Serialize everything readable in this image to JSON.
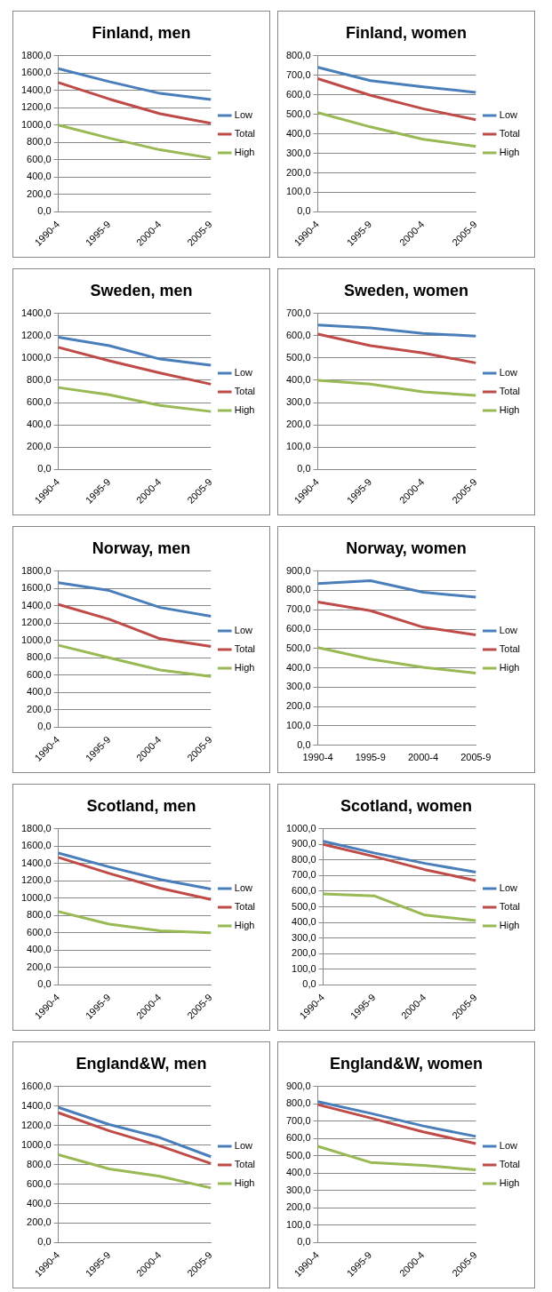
{
  "chart_data": [
    {
      "type": "line",
      "title": "Finland, men",
      "categories": [
        "1990-4",
        "1995-9",
        "2000-4",
        "2005-9"
      ],
      "ylim": [
        0,
        1800
      ],
      "yticks": [
        {
          "value": 0,
          "label": "0,0"
        },
        {
          "value": 200,
          "label": "200,0"
        },
        {
          "value": 400,
          "label": "400,0"
        },
        {
          "value": 600,
          "label": "600,0"
        },
        {
          "value": 800,
          "label": "800,0"
        },
        {
          "value": 1000,
          "label": "1000,0"
        },
        {
          "value": 1200,
          "label": "1200,0"
        },
        {
          "value": 1400,
          "label": "1400,0"
        },
        {
          "value": 1600,
          "label": "1600,0"
        },
        {
          "value": 1800,
          "label": "1800,0"
        }
      ],
      "grid": "y",
      "legend": "right",
      "marker": "none",
      "series": [
        {
          "name": "Low",
          "color": "#4a7ebb",
          "values": [
            1650,
            1500,
            1365,
            1295
          ]
        },
        {
          "name": "Total",
          "color": "#be4b48",
          "values": [
            1490,
            1300,
            1130,
            1020
          ]
        },
        {
          "name": "High",
          "color": "#98b954",
          "values": [
            1000,
            850,
            715,
            620
          ]
        }
      ]
    },
    {
      "type": "line",
      "title": "Finland, women",
      "categories": [
        "1990-4",
        "1995-9",
        "2000-4",
        "2005-9"
      ],
      "ylim": [
        0,
        800
      ],
      "yticks": [
        {
          "value": 0,
          "label": "0,0"
        },
        {
          "value": 100,
          "label": "100,0"
        },
        {
          "value": 200,
          "label": "200,0"
        },
        {
          "value": 300,
          "label": "300,0"
        },
        {
          "value": 400,
          "label": "400,0"
        },
        {
          "value": 500,
          "label": "500,0"
        },
        {
          "value": 600,
          "label": "600,0"
        },
        {
          "value": 700,
          "label": "700,0"
        },
        {
          "value": 800,
          "label": "800,0"
        }
      ],
      "grid": "y",
      "legend": "right",
      "marker": "none",
      "series": [
        {
          "name": "Low",
          "color": "#4a7ebb",
          "values": [
            740,
            672,
            640,
            612
          ]
        },
        {
          "name": "Total",
          "color": "#be4b48",
          "values": [
            682,
            597,
            528,
            472
          ]
        },
        {
          "name": "High",
          "color": "#98b954",
          "values": [
            508,
            435,
            372,
            335
          ]
        }
      ]
    },
    {
      "type": "line",
      "title": "Sweden, men",
      "categories": [
        "1990-4",
        "1995-9",
        "2000-4",
        "2005-9"
      ],
      "ylim": [
        0,
        1400
      ],
      "yticks": [
        {
          "value": 0,
          "label": "0,0"
        },
        {
          "value": 200,
          "label": "200,0"
        },
        {
          "value": 400,
          "label": "400,0"
        },
        {
          "value": 600,
          "label": "600,0"
        },
        {
          "value": 800,
          "label": "800,0"
        },
        {
          "value": 1000,
          "label": "1000,0"
        },
        {
          "value": 1200,
          "label": "1200,0"
        },
        {
          "value": 1400,
          "label": "1400,0"
        }
      ],
      "grid": "y",
      "legend": "right",
      "marker": "none",
      "series": [
        {
          "name": "Low",
          "color": "#4a7ebb",
          "values": [
            1185,
            1110,
            990,
            935
          ]
        },
        {
          "name": "Total",
          "color": "#be4b48",
          "values": [
            1095,
            975,
            865,
            765
          ]
        },
        {
          "name": "High",
          "color": "#98b954",
          "values": [
            735,
            670,
            575,
            520
          ]
        }
      ]
    },
    {
      "type": "line",
      "title": "Sweden, women",
      "categories": [
        "1990-4",
        "1995-9",
        "2000-4",
        "2005-9"
      ],
      "ylim": [
        0,
        700
      ],
      "yticks": [
        {
          "value": 0,
          "label": "0,0"
        },
        {
          "value": 100,
          "label": "100,0"
        },
        {
          "value": 200,
          "label": "200,0"
        },
        {
          "value": 300,
          "label": "300,0"
        },
        {
          "value": 400,
          "label": "400,0"
        },
        {
          "value": 500,
          "label": "500,0"
        },
        {
          "value": 600,
          "label": "600,0"
        },
        {
          "value": 700,
          "label": "700,0"
        }
      ],
      "grid": "y",
      "legend": "right",
      "marker": "none",
      "series": [
        {
          "name": "Low",
          "color": "#4a7ebb",
          "values": [
            648,
            635,
            610,
            598
          ]
        },
        {
          "name": "Total",
          "color": "#be4b48",
          "values": [
            607,
            555,
            522,
            478
          ]
        },
        {
          "name": "High",
          "color": "#98b954",
          "values": [
            400,
            383,
            348,
            332
          ]
        }
      ]
    },
    {
      "type": "line",
      "title": "Norway, men",
      "categories": [
        "1990-4",
        "1995-9",
        "2000-4",
        "2005-9"
      ],
      "ylim": [
        0,
        1800
      ],
      "yticks": [
        {
          "value": 0,
          "label": "0,0"
        },
        {
          "value": 200,
          "label": "200,0"
        },
        {
          "value": 400,
          "label": "400,0"
        },
        {
          "value": 600,
          "label": "600,0"
        },
        {
          "value": 800,
          "label": "800,0"
        },
        {
          "value": 1000,
          "label": "1000,0"
        },
        {
          "value": 1200,
          "label": "1200,0"
        },
        {
          "value": 1400,
          "label": "1400,0"
        },
        {
          "value": 1600,
          "label": "1600,0"
        },
        {
          "value": 1800,
          "label": "1800,0"
        }
      ],
      "grid": "y",
      "legend": "right",
      "marker": "none",
      "series": [
        {
          "name": "Low",
          "color": "#4a7ebb",
          "values": [
            1665,
            1575,
            1380,
            1280
          ]
        },
        {
          "name": "Total",
          "color": "#be4b48",
          "values": [
            1415,
            1245,
            1020,
            930
          ]
        },
        {
          "name": "High",
          "color": "#98b954",
          "values": [
            945,
            800,
            660,
            585
          ]
        }
      ]
    },
    {
      "type": "line",
      "title": "Norway, women",
      "categories": [
        "1990-4",
        "1995-9",
        "2000-4",
        "2005-9"
      ],
      "ylim": [
        0,
        900
      ],
      "yticks": [
        {
          "value": 0,
          "label": "0,0"
        },
        {
          "value": 100,
          "label": "100,0"
        },
        {
          "value": 200,
          "label": "200,0"
        },
        {
          "value": 300,
          "label": "300,0"
        },
        {
          "value": 400,
          "label": "400,0"
        },
        {
          "value": 500,
          "label": "500,0"
        },
        {
          "value": 600,
          "label": "600,0"
        },
        {
          "value": 700,
          "label": "700,0"
        },
        {
          "value": 800,
          "label": "800,0"
        },
        {
          "value": 900,
          "label": "900,0"
        }
      ],
      "grid": "y",
      "legend": "right",
      "marker": "none",
      "series": [
        {
          "name": "Low",
          "color": "#4a7ebb",
          "values": [
            835,
            850,
            790,
            765
          ]
        },
        {
          "name": "Total",
          "color": "#be4b48",
          "values": [
            740,
            695,
            610,
            570
          ]
        },
        {
          "name": "High",
          "color": "#98b954",
          "values": [
            505,
            445,
            403,
            373
          ]
        }
      ]
    },
    {
      "type": "line",
      "title": "Scotland, men",
      "categories": [
        "1990-4",
        "1995-9",
        "2000-4",
        "2005-9"
      ],
      "ylim": [
        0,
        1800
      ],
      "yticks": [
        {
          "value": 0,
          "label": "0,0"
        },
        {
          "value": 200,
          "label": "200,0"
        },
        {
          "value": 400,
          "label": "400,0"
        },
        {
          "value": 600,
          "label": "600,0"
        },
        {
          "value": 800,
          "label": "800,0"
        },
        {
          "value": 1000,
          "label": "1000,0"
        },
        {
          "value": 1200,
          "label": "1200,0"
        },
        {
          "value": 1400,
          "label": "1400,0"
        },
        {
          "value": 1600,
          "label": "1600,0"
        },
        {
          "value": 1800,
          "label": "1800,0"
        }
      ],
      "grid": "y",
      "legend": "right",
      "marker": "none",
      "series": [
        {
          "name": "Low",
          "color": "#4a7ebb",
          "values": [
            1520,
            1360,
            1215,
            1105
          ]
        },
        {
          "name": "Total",
          "color": "#be4b48",
          "values": [
            1470,
            1285,
            1115,
            985
          ]
        },
        {
          "name": "High",
          "color": "#98b954",
          "values": [
            845,
            700,
            625,
            600
          ]
        }
      ]
    },
    {
      "type": "line",
      "title": "Scotland, women",
      "categories": [
        "1990-4",
        "1995-9",
        "2000-4",
        "2005-9"
      ],
      "ylim": [
        0,
        1000
      ],
      "yticks": [
        {
          "value": 0,
          "label": "0,0"
        },
        {
          "value": 100,
          "label": "100,0"
        },
        {
          "value": 200,
          "label": "200,0"
        },
        {
          "value": 300,
          "label": "300,0"
        },
        {
          "value": 400,
          "label": "400,0"
        },
        {
          "value": 500,
          "label": "500,0"
        },
        {
          "value": 600,
          "label": "600,0"
        },
        {
          "value": 700,
          "label": "700,0"
        },
        {
          "value": 800,
          "label": "800,0"
        },
        {
          "value": 900,
          "label": "900,0"
        },
        {
          "value": 1000,
          "label": "1000,0"
        }
      ],
      "grid": "y",
      "legend": "right",
      "marker": "none",
      "series": [
        {
          "name": "Low",
          "color": "#4a7ebb",
          "values": [
            920,
            845,
            778,
            722
          ]
        },
        {
          "name": "Total",
          "color": "#be4b48",
          "values": [
            900,
            822,
            738,
            668
          ]
        },
        {
          "name": "High",
          "color": "#98b954",
          "values": [
            582,
            570,
            447,
            412
          ]
        }
      ]
    },
    {
      "type": "line",
      "title": "England&W, men",
      "categories": [
        "1990-4",
        "1995-9",
        "2000-4",
        "2005-9"
      ],
      "ylim": [
        0,
        1600
      ],
      "yticks": [
        {
          "value": 0,
          "label": "0,0"
        },
        {
          "value": 200,
          "label": "200,0"
        },
        {
          "value": 400,
          "label": "400,0"
        },
        {
          "value": 600,
          "label": "600,0"
        },
        {
          "value": 800,
          "label": "800,0"
        },
        {
          "value": 1000,
          "label": "1000,0"
        },
        {
          "value": 1200,
          "label": "1200,0"
        },
        {
          "value": 1400,
          "label": "1400,0"
        },
        {
          "value": 1600,
          "label": "1600,0"
        }
      ],
      "grid": "y",
      "legend": "right",
      "marker": "none",
      "series": [
        {
          "name": "Low",
          "color": "#4a7ebb",
          "values": [
            1385,
            1210,
            1075,
            880
          ]
        },
        {
          "name": "Total",
          "color": "#be4b48",
          "values": [
            1330,
            1145,
            990,
            810
          ]
        },
        {
          "name": "High",
          "color": "#98b954",
          "values": [
            900,
            755,
            680,
            560
          ]
        }
      ]
    },
    {
      "type": "line",
      "title": "England&W, women",
      "categories": [
        "1990-4",
        "1995-9",
        "2000-4",
        "2005-9"
      ],
      "ylim": [
        0,
        900
      ],
      "yticks": [
        {
          "value": 0,
          "label": "0,0"
        },
        {
          "value": 100,
          "label": "100,0"
        },
        {
          "value": 200,
          "label": "200,0"
        },
        {
          "value": 300,
          "label": "300,0"
        },
        {
          "value": 400,
          "label": "400,0"
        },
        {
          "value": 500,
          "label": "500,0"
        },
        {
          "value": 600,
          "label": "600,0"
        },
        {
          "value": 700,
          "label": "700,0"
        },
        {
          "value": 800,
          "label": "800,0"
        },
        {
          "value": 900,
          "label": "900,0"
        }
      ],
      "grid": "y",
      "legend": "right",
      "marker": "none",
      "series": [
        {
          "name": "Low",
          "color": "#4a7ebb",
          "values": [
            812,
            745,
            672,
            612
          ]
        },
        {
          "name": "Total",
          "color": "#be4b48",
          "values": [
            795,
            718,
            638,
            570
          ]
        },
        {
          "name": "High",
          "color": "#98b954",
          "values": [
            555,
            462,
            445,
            420
          ]
        }
      ]
    }
  ]
}
